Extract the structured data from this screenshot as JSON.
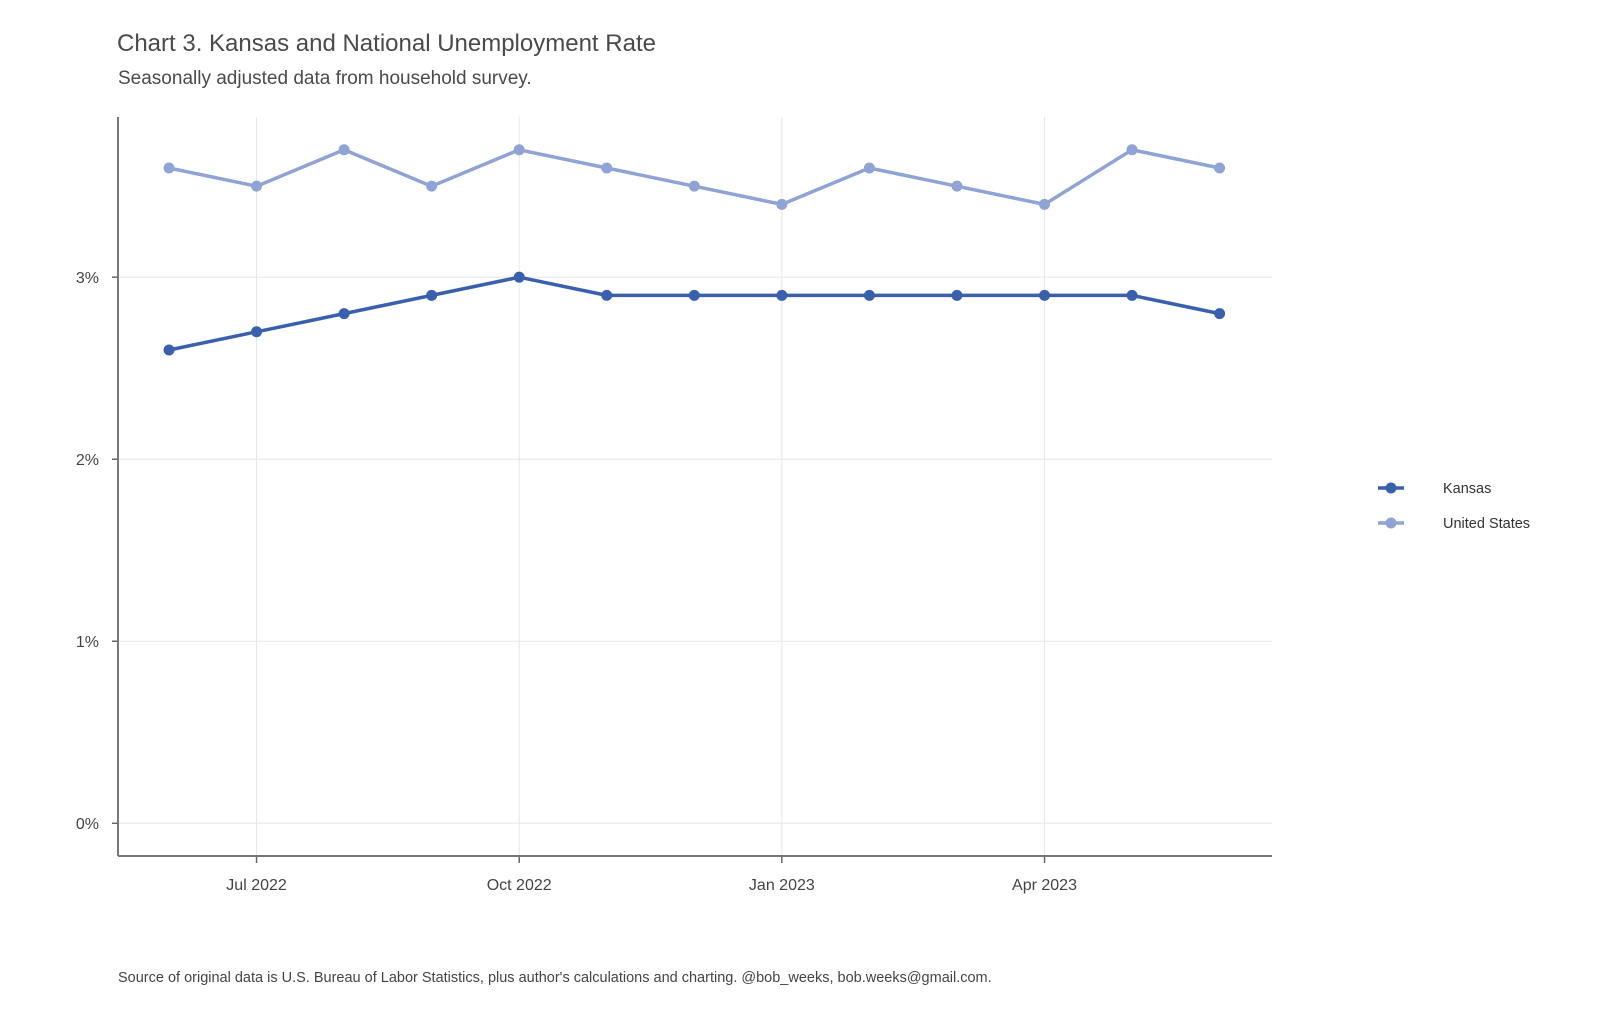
{
  "chart_data": {
    "type": "line",
    "title": "Chart 3. Kansas and National Unemployment Rate",
    "subtitle": "Seasonally adjusted data from household survey.",
    "caption": "Source of original data is U.S. Bureau of Labor Statistics, plus author's calculations and charting. @bob_weeks, bob.weeks@gmail.com.",
    "x": [
      "2022-06",
      "2022-07",
      "2022-08",
      "2022-09",
      "2022-10",
      "2022-11",
      "2022-12",
      "2023-01",
      "2023-02",
      "2023-03",
      "2023-04",
      "2023-05",
      "2023-06"
    ],
    "x_ticks": [
      {
        "at": "2022-07",
        "label": "Jul 2022"
      },
      {
        "at": "2022-10",
        "label": "Oct 2022"
      },
      {
        "at": "2023-01",
        "label": "Jan 2023"
      },
      {
        "at": "2023-04",
        "label": "Apr 2023"
      }
    ],
    "y_ticks": [
      {
        "value": 0,
        "label": "0%"
      },
      {
        "value": 1,
        "label": "1%"
      },
      {
        "value": 2,
        "label": "2%"
      },
      {
        "value": 3,
        "label": "3%"
      }
    ],
    "ylim": [
      -0.18,
      3.88
    ],
    "xlabel": "",
    "ylabel": "",
    "grid": true,
    "legend_position": "right",
    "series": [
      {
        "name": "Kansas",
        "color": "#3a60ad",
        "values": [
          2.6,
          2.7,
          2.8,
          2.9,
          3.0,
          2.9,
          2.9,
          2.9,
          2.9,
          2.9,
          2.9,
          2.9,
          2.8
        ]
      },
      {
        "name": "United States",
        "color": "#8fa3d4",
        "values": [
          3.6,
          3.5,
          3.7,
          3.5,
          3.7,
          3.6,
          3.5,
          3.4,
          3.6,
          3.5,
          3.4,
          3.7,
          3.6
        ]
      }
    ]
  }
}
